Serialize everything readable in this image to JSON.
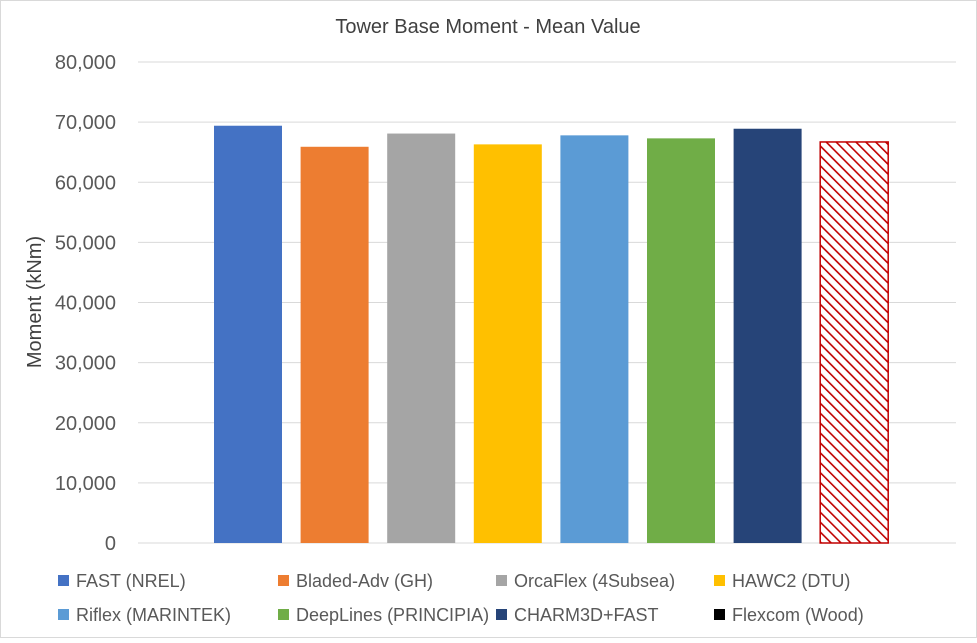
{
  "chart_data": {
    "type": "bar",
    "title": "Tower Base Moment - Mean Value",
    "xlabel": "",
    "ylabel": "Moment (kNm)",
    "ylim": [
      0,
      80000
    ],
    "yticks": [
      0,
      10000,
      20000,
      30000,
      40000,
      50000,
      60000,
      70000,
      80000
    ],
    "ytick_labels": [
      "0",
      "10,000",
      "20,000",
      "30,000",
      "40,000",
      "50,000",
      "60,000",
      "70,000",
      "80,000"
    ],
    "grid": true,
    "legend_position": "bottom",
    "series": [
      {
        "name": "FAST (NREL)",
        "value": 69400,
        "color": "#4472c4",
        "pattern": "solid"
      },
      {
        "name": "Bladed-Adv (GH)",
        "value": 65900,
        "color": "#ed7d31",
        "pattern": "solid"
      },
      {
        "name": "OrcaFlex (4Subsea)",
        "value": 68100,
        "color": "#a5a5a5",
        "pattern": "solid"
      },
      {
        "name": "HAWC2 (DTU)",
        "value": 66300,
        "color": "#ffc000",
        "pattern": "solid"
      },
      {
        "name": "Riflex (MARINTEK)",
        "value": 67800,
        "color": "#5b9bd5",
        "pattern": "solid"
      },
      {
        "name": "DeepLines (PRINCIPIA)",
        "value": 67300,
        "color": "#70ad47",
        "pattern": "solid"
      },
      {
        "name": "CHARM3D+FAST",
        "value": 68900,
        "color": "#264478",
        "pattern": "solid"
      },
      {
        "name": "Flexcom (Wood)",
        "value": 0,
        "color": "#000000",
        "pattern": "solid"
      },
      {
        "name": "",
        "value": 66700,
        "color": "#c00000",
        "pattern": "diagonal-hatch"
      }
    ]
  }
}
